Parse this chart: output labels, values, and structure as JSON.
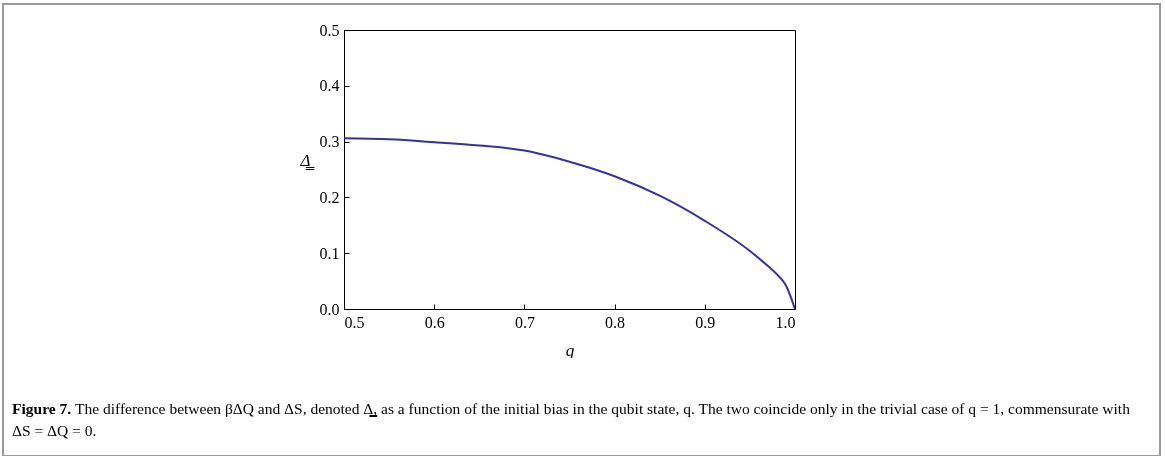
{
  "chart_data": {
    "type": "line",
    "xlabel": "q",
    "ylabel": "Δ̳",
    "x": [
      0.5,
      0.55,
      0.6,
      0.65,
      0.7,
      0.75,
      0.8,
      0.85,
      0.9,
      0.95,
      0.97,
      0.98,
      0.99,
      1.0
    ],
    "series": [
      {
        "color": "#33339a",
        "values": [
          0.306,
          0.304,
          0.299,
          0.293,
          0.284,
          0.264,
          0.238,
          0.203,
          0.158,
          0.104,
          0.077,
          0.062,
          0.042,
          0
        ]
      }
    ],
    "xlim": [
      0.5,
      1.0
    ],
    "xticks": [
      0.5,
      0.6,
      0.7,
      0.8,
      0.9,
      {
        "value": 1,
        "label": "1.0"
      }
    ],
    "ylim": [
      0,
      0.5
    ],
    "yticks": [
      {
        "value": 0,
        "label": "0.0"
      },
      0.1,
      0.2,
      0.3,
      0.4,
      0.5
    ],
    "grid": false,
    "annotations": [
      "Figure 7.",
      "The difference between βΔQ and ΔS, denoted Δ̳, as a function of the initial bias in the qubit state, q. The two coincide only in the trivial case of q = 1, commensurate with ΔS = ΔQ = 0."
    ]
  }
}
